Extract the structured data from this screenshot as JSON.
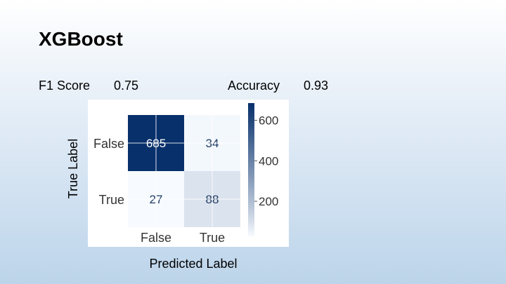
{
  "slide": {
    "title": "XGBoost",
    "metrics": {
      "f1_label": "F1 Score",
      "f1_value": "0.75",
      "accuracy_label": "Accuracy",
      "accuracy_value": "0.93"
    }
  },
  "chart_data": {
    "type": "heatmap",
    "title": "",
    "xlabel": "Predicted Label",
    "ylabel": "True Label",
    "x_categories": [
      "False",
      "True"
    ],
    "y_categories": [
      "False",
      "True"
    ],
    "values": [
      [
        685,
        34
      ],
      [
        27,
        88
      ]
    ],
    "colormap": "Blues",
    "colorbar": {
      "min": 27,
      "max": 685,
      "ticks": [
        200,
        400,
        600
      ]
    },
    "colors": {
      "low": "#f7fbff",
      "high": "#08306b",
      "text_dark": "#1f3b63",
      "text_light": "#ffffff"
    }
  }
}
